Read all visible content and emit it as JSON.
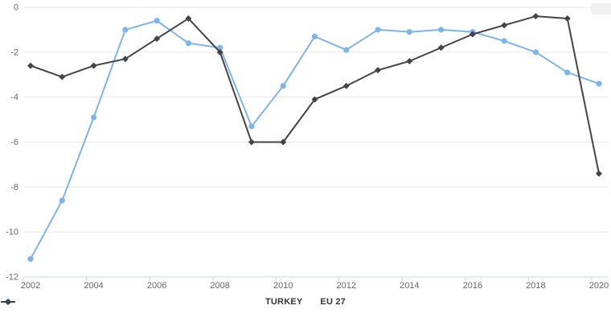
{
  "chart_data": {
    "type": "line",
    "title": "",
    "x": [
      2002,
      2003,
      2004,
      2005,
      2006,
      2007,
      2008,
      2009,
      2010,
      2011,
      2012,
      2013,
      2014,
      2015,
      2016,
      2017,
      2018,
      2019,
      2020
    ],
    "series": [
      {
        "name": "TURKEY",
        "color": "#7cb5ec",
        "marker": "circle",
        "values": [
          -11.2,
          -8.6,
          -4.9,
          -1.0,
          -0.6,
          -1.6,
          -1.8,
          -5.3,
          -3.5,
          -1.3,
          -1.9,
          -1.0,
          -1.1,
          -1.0,
          -1.1,
          -1.5,
          -2.0,
          -2.9,
          -3.4
        ]
      },
      {
        "name": "EU 27",
        "color": "#434348",
        "marker": "diamond",
        "values": [
          -2.6,
          -3.1,
          -2.6,
          -2.3,
          -1.4,
          -0.5,
          -2.0,
          -6.0,
          -6.0,
          -4.1,
          -3.5,
          -2.8,
          -2.4,
          -1.8,
          -1.2,
          -0.8,
          -0.4,
          -0.5,
          -7.4
        ]
      }
    ],
    "xlabel": "",
    "ylabel": "",
    "ylim": [
      -12,
      0
    ],
    "yticks": [
      0,
      -2,
      -4,
      -6,
      -8,
      -10,
      -12
    ],
    "xtick_labels": [
      "2002",
      "2004",
      "2006",
      "2008",
      "2010",
      "2012",
      "2014",
      "2016",
      "2018",
      "2020"
    ],
    "grid": true,
    "legend_position": "bottom"
  },
  "theme": {
    "background": "#ffffff",
    "gridline_color": "#e6e6e6",
    "axis_color": "#ccd6eb",
    "tick_label_color": "#666666",
    "legend_text_color": "#333333"
  }
}
